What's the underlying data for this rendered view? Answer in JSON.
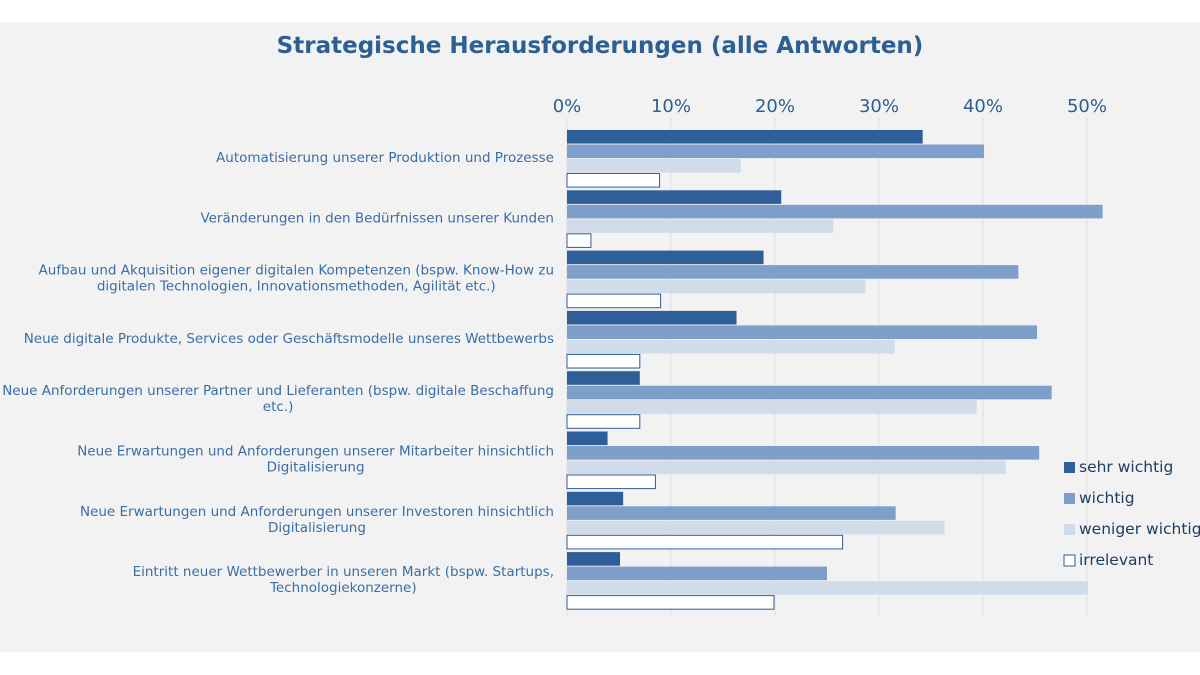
{
  "chart_data": {
    "type": "bar",
    "orientation": "horizontal",
    "title": "Strategische Herausforderungen (alle Antworten)",
    "xlabel": "",
    "ylabel": "",
    "xlim": [
      0,
      50
    ],
    "x_ticks": [
      "0%",
      "10%",
      "20%",
      "30%",
      "40%",
      "50%"
    ],
    "grid": true,
    "legend_position": "right",
    "categories": [
      [
        "Automatisierung unserer Produktion und Prozesse"
      ],
      [
        "Veränderungen in den Bedürfnissen unserer Kunden"
      ],
      [
        "Aufbau und Akquisition eigener digitalen Kompetenzen (bspw. Know-How zu",
        "digitalen Technologien, Innovationsmethoden, Agilität etc.)"
      ],
      [
        "Neue digitale Produkte, Services oder Geschäftsmodelle unseres Wettbewerbs"
      ],
      [
        "Neue Anforderungen unserer Partner und Lieferanten (bspw. digitale Beschaffung",
        "etc.)"
      ],
      [
        "Neue Erwartungen und Anforderungen unserer Mitarbeiter hinsichtlich",
        "Digitalisierung"
      ],
      [
        "Neue Erwartungen und Anforderungen unserer Investoren hinsichtlich",
        "Digitalisierung"
      ],
      [
        "Eintritt neuer Wettbewerber in unseren Markt (bspw. Startups,",
        "Technologiekonzerne)"
      ]
    ],
    "series": [
      {
        "name": "sehr wichtig",
        "color": "#2e5f98",
        "values": [
          34.2,
          20.6,
          18.9,
          16.3,
          7.0,
          3.9,
          5.4,
          5.1
        ]
      },
      {
        "name": "wichtig",
        "color": "#7f9fcb",
        "values": [
          40.1,
          51.5,
          43.4,
          45.2,
          46.6,
          45.4,
          31.6,
          25.0
        ]
      },
      {
        "name": "weniger wichtig",
        "color": "#d1dceb",
        "values": [
          16.7,
          25.6,
          28.7,
          31.5,
          39.4,
          42.2,
          36.3,
          50.1
        ]
      },
      {
        "name": "irrelevant",
        "color": "#ffffff",
        "outline": "#2e5f98",
        "values": [
          8.9,
          2.3,
          9.0,
          7.0,
          7.0,
          8.5,
          26.5,
          19.9
        ]
      }
    ]
  }
}
